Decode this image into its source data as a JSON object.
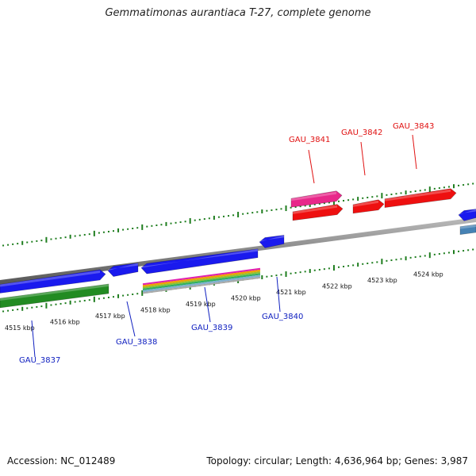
{
  "title": "Gemmatimonas aurantiaca T-27, complete genome",
  "footer": {
    "accession": "Accession: NC_012489",
    "summary": "Topology: circular; Length: 4,636,964 bp; Genes: 3,987"
  },
  "colors": {
    "backbone": "#888888",
    "ruler": "#1e7d1e",
    "top_strand_label": "#e01010",
    "bottom_strand_label": "#1020c0"
  },
  "ruler_labels": [
    "4515 kbp",
    "4516 kbp",
    "4517 kbp",
    "4518 kbp",
    "4519 kbp",
    "4520 kbp",
    "4521 kbp",
    "4522 kbp",
    "4523 kbp",
    "4524 kbp"
  ],
  "gene_labels": [
    {
      "name": "GAU_3837",
      "strand": "bottom"
    },
    {
      "name": "GAU_3838",
      "strand": "bottom"
    },
    {
      "name": "GAU_3839",
      "strand": "bottom"
    },
    {
      "name": "GAU_3840",
      "strand": "bottom"
    },
    {
      "name": "GAU_3841",
      "strand": "top"
    },
    {
      "name": "GAU_3842",
      "strand": "top"
    },
    {
      "name": "GAU_3843",
      "strand": "top"
    }
  ],
  "features": [
    {
      "color": "#1a1aee",
      "dir": "right"
    },
    {
      "color": "#1a1aee",
      "dir": "left"
    },
    {
      "color": "#1a1aee",
      "dir": "left"
    },
    {
      "color": "#1a1aee",
      "dir": "left"
    },
    {
      "color": "#1a1aee",
      "dir": "left"
    },
    {
      "color": "#228b22",
      "dir": "none"
    },
    {
      "color": "#e8288a",
      "dir": "right"
    },
    {
      "color": "#ee1010",
      "dir": "right"
    },
    {
      "color": "#ee1010",
      "dir": "right"
    },
    {
      "color": "#ee1010",
      "dir": "right"
    },
    {
      "color": "#4682b4",
      "dir": "none"
    }
  ]
}
